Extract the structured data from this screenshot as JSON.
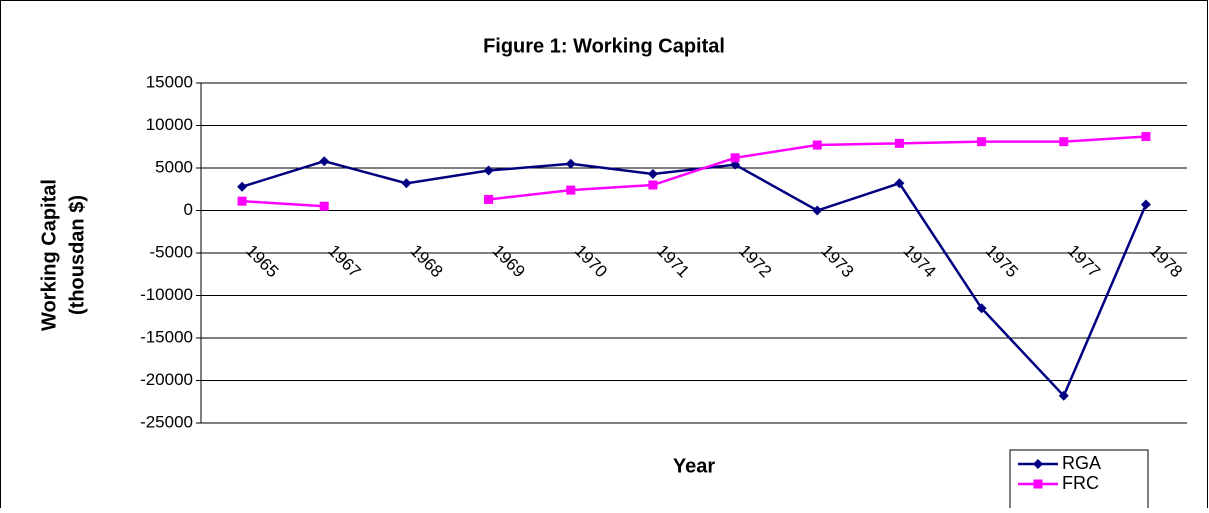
{
  "chart_data": {
    "type": "line",
    "title": "Figure 1: Working Capital",
    "x_label": "Year",
    "y_label": [
      "Working Capital",
      "(thousdan $)"
    ],
    "categories": [
      "1965",
      "1967",
      "1968",
      "1969",
      "1970",
      "1971",
      "1972",
      "1973",
      "1974",
      "1975",
      "1977",
      "1978"
    ],
    "series": [
      {
        "name": "RGA",
        "color": "#000080",
        "marker": "diamond",
        "values": [
          2800,
          5800,
          3200,
          4700,
          5500,
          4300,
          5400,
          0,
          3200,
          -11500,
          -21800,
          700
        ]
      },
      {
        "name": "FRC",
        "color": "#ff00ff",
        "marker": "square",
        "values": [
          1100,
          500,
          null,
          1300,
          2400,
          3000,
          6200,
          7700,
          7900,
          8100,
          8100,
          8700
        ]
      }
    ],
    "ylim": [
      -25000,
      15000
    ],
    "yticks": [
      -25000,
      -20000,
      -15000,
      -10000,
      -5000,
      0,
      5000,
      10000,
      15000
    ],
    "grid": true,
    "legend": "lower right"
  }
}
